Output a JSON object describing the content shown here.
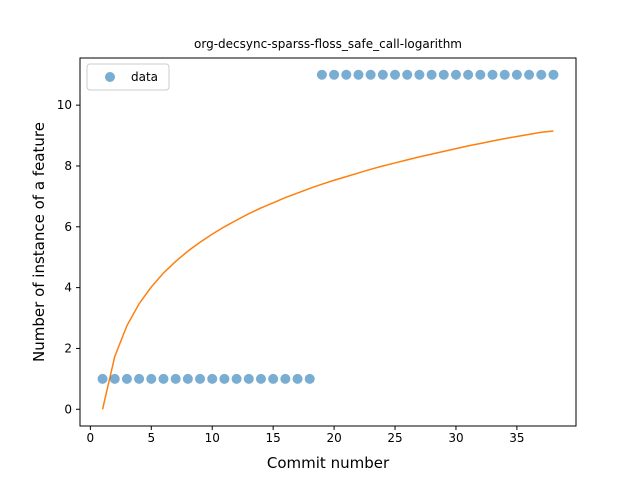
{
  "chart_data": {
    "type": "scatter",
    "title": "org-decsync-sparss-floss_safe_call-logarithm",
    "xlabel": "Commit number",
    "ylabel": "Number of instance of a feature",
    "xlim": [
      -0.85,
      39.85
    ],
    "ylim": [
      -0.55,
      11.55
    ],
    "xticks": [
      0,
      5,
      10,
      15,
      20,
      25,
      30,
      35
    ],
    "yticks": [
      0,
      2,
      4,
      6,
      8,
      10
    ],
    "grid": false,
    "legend": {
      "placement": "top-left",
      "entries": [
        "data"
      ]
    },
    "colors": {
      "data": "#1f77b4",
      "fit": "#ff7f0e"
    },
    "series": [
      {
        "name": "data",
        "kind": "scatter",
        "x": [
          1,
          2,
          3,
          4,
          5,
          6,
          7,
          8,
          9,
          10,
          11,
          12,
          13,
          14,
          15,
          16,
          17,
          18,
          19,
          20,
          21,
          22,
          23,
          24,
          25,
          26,
          27,
          28,
          29,
          30,
          31,
          32,
          33,
          34,
          35,
          36,
          37,
          38
        ],
        "y": [
          1,
          1,
          1,
          1,
          1,
          1,
          1,
          1,
          1,
          1,
          1,
          1,
          1,
          1,
          1,
          1,
          1,
          1,
          11,
          11,
          11,
          11,
          11,
          11,
          11,
          11,
          11,
          11,
          11,
          11,
          11,
          11,
          11,
          11,
          11,
          11,
          11,
          11
        ]
      },
      {
        "kind": "line",
        "x": [
          1,
          2,
          3,
          4,
          5,
          6,
          7,
          8,
          9,
          10,
          11,
          12,
          13,
          14,
          15,
          16,
          17,
          18,
          19,
          20,
          21,
          22,
          23,
          24,
          25,
          26,
          27,
          28,
          29,
          30,
          31,
          32,
          33,
          34,
          35,
          36,
          37,
          38
        ],
        "y": [
          0.0,
          1.73,
          2.75,
          3.47,
          4.02,
          4.48,
          4.86,
          5.2,
          5.49,
          5.76,
          6.0,
          6.22,
          6.43,
          6.62,
          6.79,
          6.96,
          7.11,
          7.26,
          7.4,
          7.53,
          7.65,
          7.77,
          7.89,
          8.0,
          8.1,
          8.2,
          8.3,
          8.39,
          8.48,
          8.57,
          8.66,
          8.74,
          8.82,
          8.9,
          8.97,
          9.04,
          9.11,
          9.15
        ]
      }
    ]
  }
}
